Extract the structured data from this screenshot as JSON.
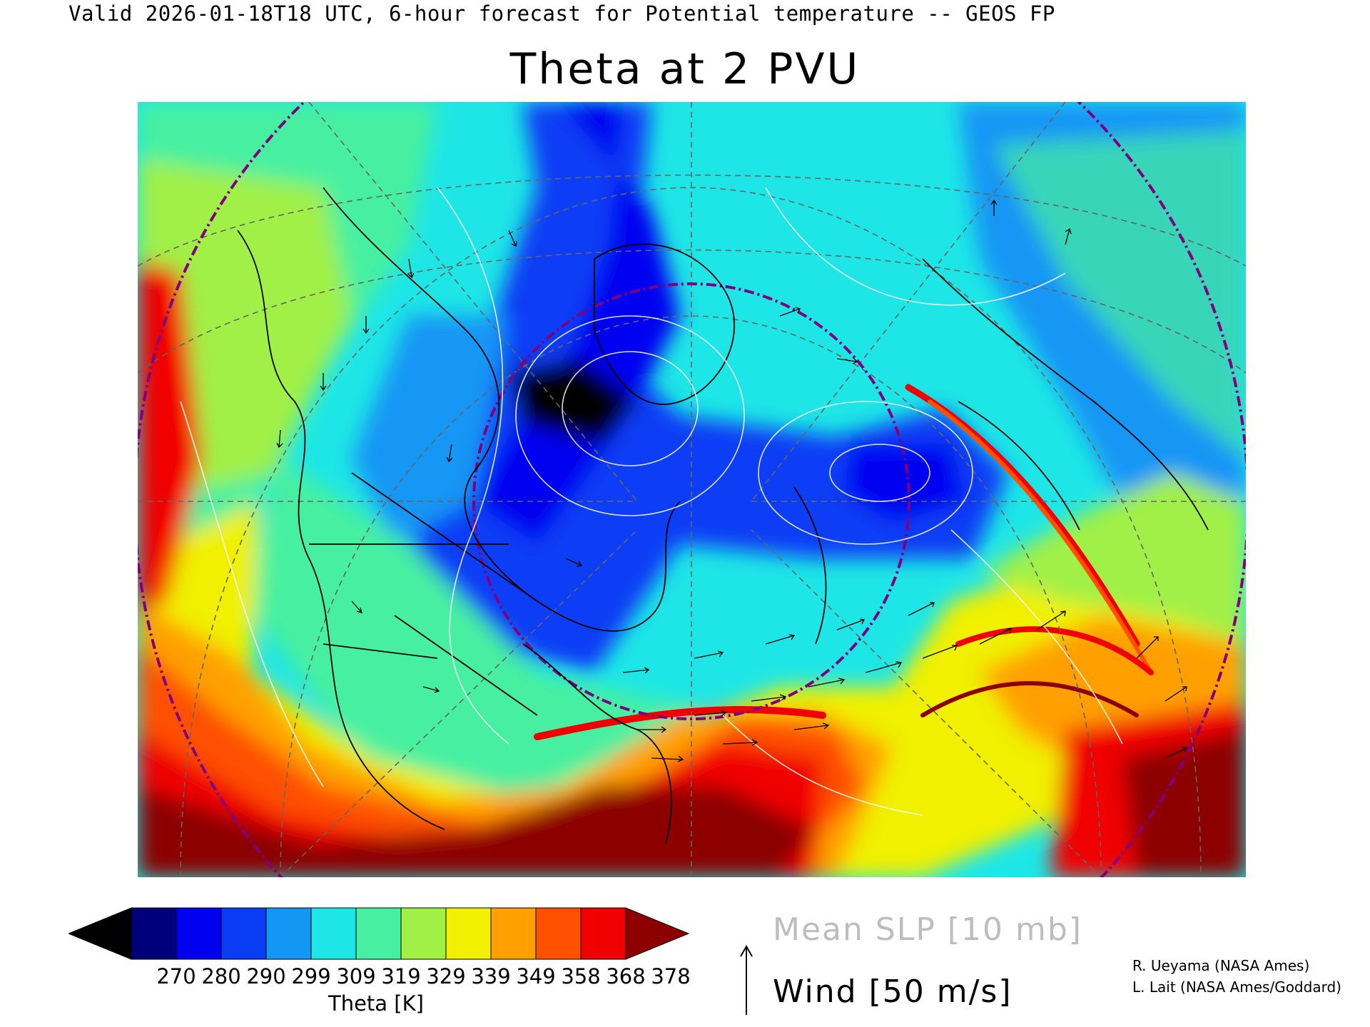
{
  "header": {
    "valid_line": "Valid 2026-01-18T18 UTC, 6-hour forecast for Potential temperature -- GEOS FP",
    "title": "Theta at 2 PVU"
  },
  "map": {
    "projection": "polar stereographic",
    "field": "Potential temperature on 2 PVU surface",
    "overlays": [
      "Mean SLP contours (white)",
      "Wind vectors (black)",
      "Coastlines and borders (black)",
      "Lat/lon grid (dashed gray)",
      "Reference circles (purple dash-dot)"
    ]
  },
  "colorbar": {
    "colors": [
      "#000000",
      "#00007a",
      "#0000f0",
      "#0a3cf5",
      "#1496f5",
      "#1ee6e6",
      "#46f0a0",
      "#a0f046",
      "#f0f000",
      "#ffa000",
      "#ff5000",
      "#f00000",
      "#8c0000"
    ],
    "ticks": [
      "270",
      "280",
      "290",
      "299",
      "309",
      "319",
      "329",
      "339",
      "349",
      "358",
      "368",
      "378"
    ],
    "title": "Theta [K]"
  },
  "legend": {
    "slp": "Mean SLP [10 mb]",
    "wind": "Wind [50 m/s]"
  },
  "credits": {
    "line1": "R. Ueyama (NASA Ames)",
    "line2": "L. Lait (NASA Ames/Goddard)"
  }
}
